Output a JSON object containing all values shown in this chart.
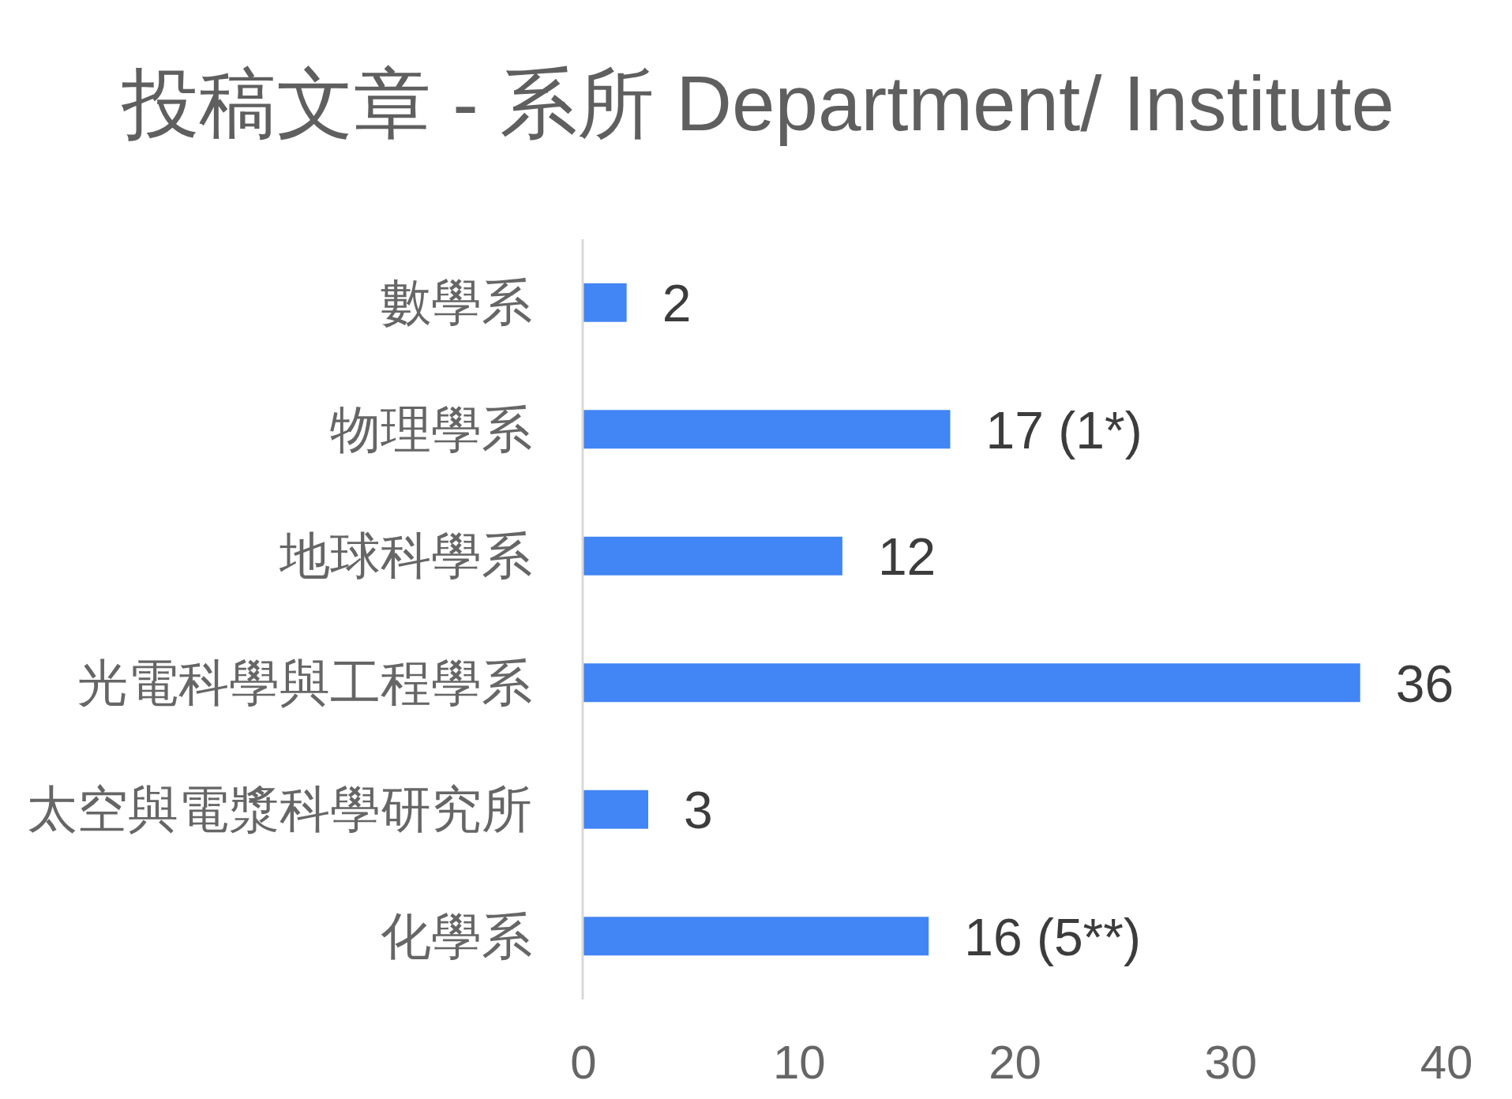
{
  "chart_data": {
    "type": "bar",
    "orientation": "horizontal",
    "title": "投稿文章 - 系所 Department/ Institute",
    "categories": [
      "數學系",
      "物理學系",
      "地球科學系",
      "光電科學與工程學系",
      "太空與電漿科學研究所",
      "化學系"
    ],
    "values": [
      2,
      17,
      12,
      36,
      3,
      16
    ],
    "color": "#4285f4",
    "value_labels": [
      "2",
      "17 (1*)",
      "12",
      "36",
      "3",
      "16 (5**)"
    ],
    "xlim": [
      0,
      40
    ],
    "xticks": [
      0,
      10,
      20,
      30,
      40
    ],
    "grid": false
  }
}
